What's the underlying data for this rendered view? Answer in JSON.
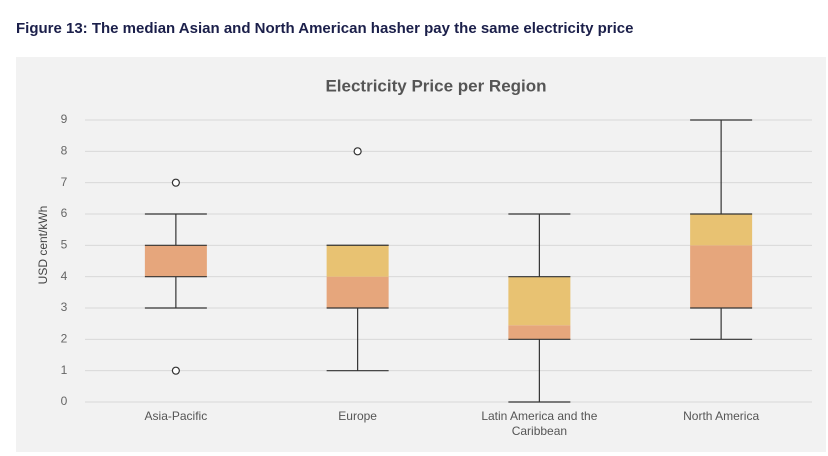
{
  "chart_data": {
    "type": "box",
    "figure_title": "Figure 13: The median Asian and North American hasher pay the same electricity price",
    "title": "Electricity Price per Region",
    "y_label": "USD cent/kWh",
    "categories": [
      "Asia-Pacific",
      "Europe",
      "Latin America and the Caribbean",
      "North America"
    ],
    "boxes": [
      {
        "min": 3,
        "q1": 4,
        "median": 5,
        "q3": 5,
        "max": 6,
        "outliers": [
          7,
          1
        ]
      },
      {
        "min": 1,
        "q1": 3,
        "median": 4,
        "q3": 5,
        "max": 5,
        "outliers": [
          8
        ]
      },
      {
        "min": 0,
        "q1": 2,
        "median": 2.45,
        "q3": 4,
        "max": 6,
        "outliers": []
      },
      {
        "min": 2,
        "q1": 3,
        "median": 5,
        "q3": 6,
        "max": 9,
        "outliers": []
      }
    ],
    "lower_color": "#e6a67c",
    "upper_color": "#e8c272",
    "ylim": [
      0,
      9
    ],
    "yticks": [
      0,
      1,
      2,
      3,
      4,
      5,
      6,
      7,
      8,
      9
    ],
    "grid": true
  }
}
